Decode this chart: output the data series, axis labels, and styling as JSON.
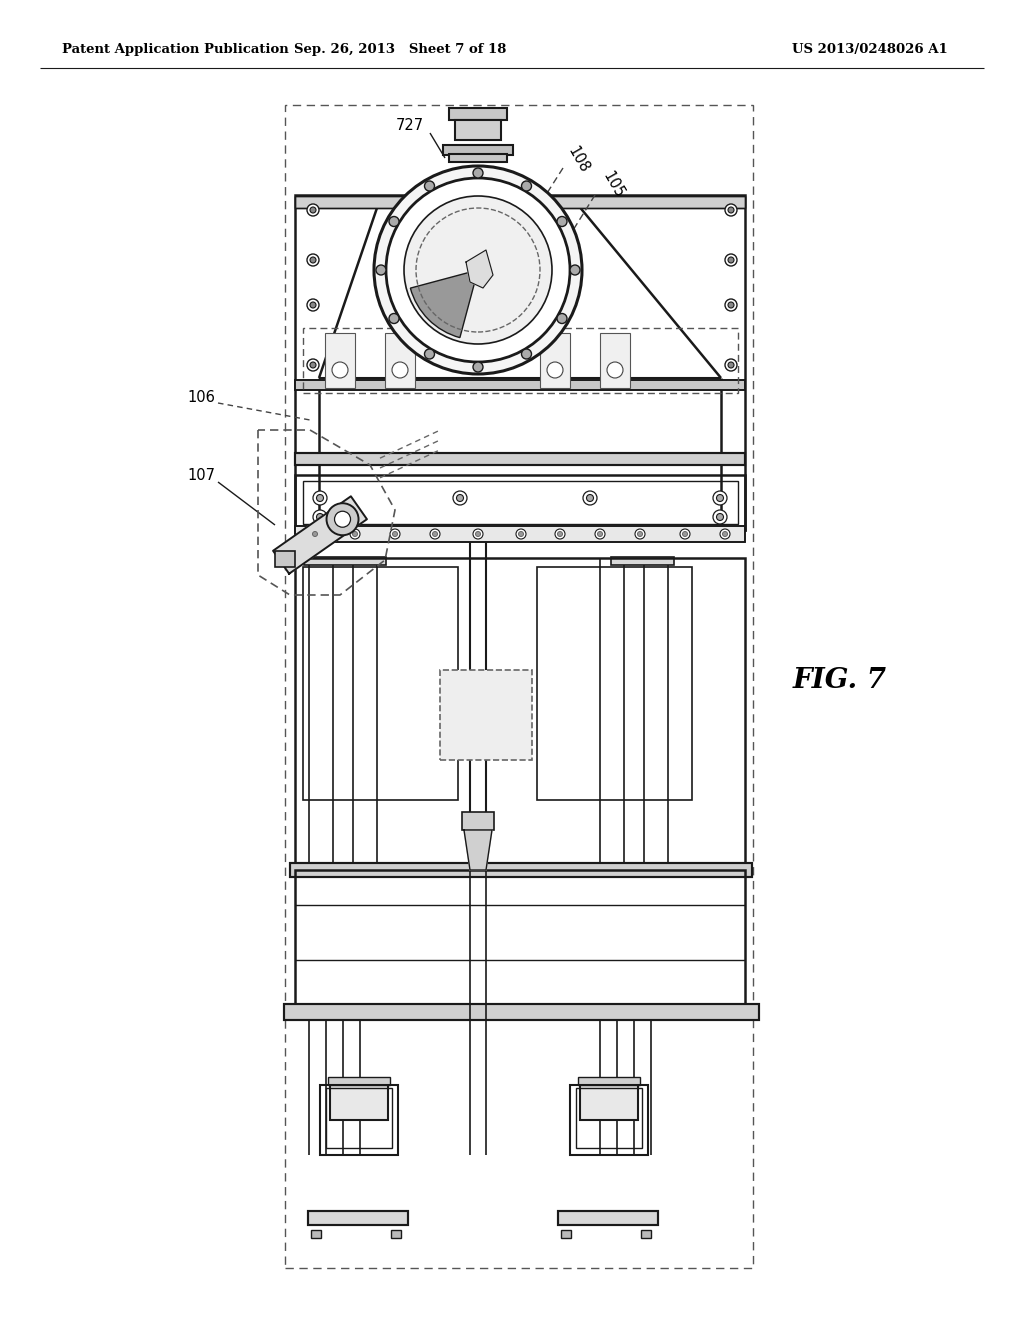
{
  "bg_color": "#ffffff",
  "header_left": "Patent Application Publication",
  "header_center": "Sep. 26, 2013   Sheet 7 of 18",
  "header_right": "US 2013/0248026 A1",
  "fig_label": "FIG. 7",
  "line_color": "#1a1a1a",
  "gray_light": "#e8e8e8",
  "gray_med": "#cccccc",
  "gray_dark": "#888888"
}
